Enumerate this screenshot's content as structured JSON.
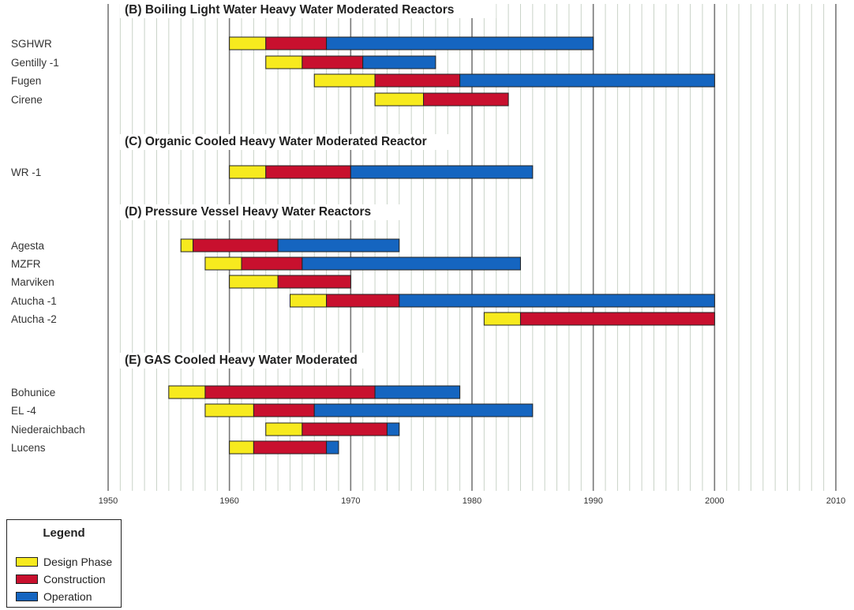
{
  "chart_data": {
    "type": "gantt",
    "xlim": [
      1950,
      2010
    ],
    "x_ticks": [
      1950,
      1960,
      1970,
      1980,
      1990,
      2000,
      2010
    ],
    "grid": true,
    "colors": {
      "design": "#f7ea1e",
      "construction": "#c8102e",
      "operation": "#1565c0"
    },
    "sections": [
      {
        "title": "(B) Boiling Light Water Heavy Water Moderated Reactors",
        "rows": [
          {
            "name": "SGHWR",
            "start": 1960,
            "design_end": 1963,
            "construction_end": 1968,
            "operation_end": 1990
          },
          {
            "name": "Gentilly -1",
            "start": 1963,
            "design_end": 1966,
            "construction_end": 1971,
            "operation_end": 1977
          },
          {
            "name": "Fugen",
            "start": 1967,
            "design_end": 1972,
            "construction_end": 1979,
            "operation_end": 2000
          },
          {
            "name": "Cirene",
            "start": 1972,
            "design_end": 1976,
            "construction_end": 1983,
            "operation_end": null
          }
        ]
      },
      {
        "title": "(C) Organic Cooled Heavy Water Moderated Reactor",
        "rows": [
          {
            "name": "WR -1",
            "start": 1960,
            "design_end": 1963,
            "construction_end": 1970,
            "operation_end": 1985
          }
        ]
      },
      {
        "title": "(D) Pressure Vessel Heavy Water Reactors",
        "rows": [
          {
            "name": "Agesta",
            "start": 1956,
            "design_end": 1957,
            "construction_end": 1964,
            "operation_end": 1974
          },
          {
            "name": "MZFR",
            "start": 1958,
            "design_end": 1961,
            "construction_end": 1966,
            "operation_end": 1984
          },
          {
            "name": "Marviken",
            "start": 1960,
            "design_end": 1964,
            "construction_end": 1970,
            "operation_end": null
          },
          {
            "name": "Atucha -1",
            "start": 1965,
            "design_end": 1968,
            "construction_end": 1974,
            "operation_end": 2000
          },
          {
            "name": "Atucha -2",
            "start": 1981,
            "design_end": 1984,
            "construction_end": 2000,
            "operation_end": null
          }
        ]
      },
      {
        "title": "(E) GAS Cooled Heavy Water Moderated",
        "rows": [
          {
            "name": "Bohunice",
            "start": 1955,
            "design_end": 1958,
            "construction_end": 1972,
            "operation_end": 1979
          },
          {
            "name": "EL -4",
            "start": 1958,
            "design_end": 1962,
            "construction_end": 1967,
            "operation_end": 1985
          },
          {
            "name": "Niederaichbach",
            "start": 1963,
            "design_end": 1966,
            "construction_end": 1973,
            "operation_end": 1974
          },
          {
            "name": "Lucens",
            "start": 1960,
            "design_end": 1962,
            "construction_end": 1968,
            "operation_end": 1969
          }
        ]
      }
    ],
    "legend": {
      "title": "Legend",
      "position": "bottom-left",
      "items": [
        {
          "label": "Design Phase",
          "color": "#f7ea1e"
        },
        {
          "label": "Construction",
          "color": "#c8102e"
        },
        {
          "label": "Operation",
          "color": "#1565c0"
        }
      ]
    }
  }
}
